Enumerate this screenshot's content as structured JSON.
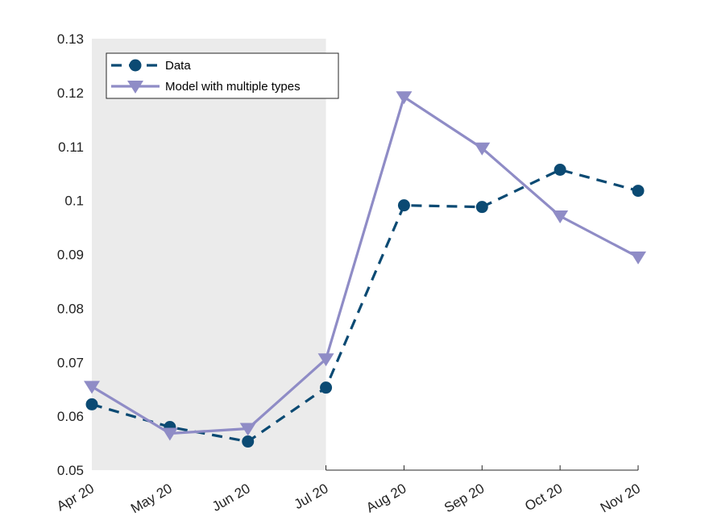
{
  "chart_data": {
    "type": "line",
    "categories": [
      "Apr 20",
      "May 20",
      "Jun 20",
      "Jul 20",
      "Aug 20",
      "Sep 20",
      "Oct 20",
      "Nov 20"
    ],
    "ylim": [
      0.05,
      0.13
    ],
    "yticks": [
      "0.05",
      "0.06",
      "0.07",
      "0.08",
      "0.09",
      "0.1",
      "0.11",
      "0.12",
      "0.13"
    ],
    "shaded_region": {
      "from": "Apr 20",
      "to": "Jul 20",
      "color": "#ebebeb"
    },
    "legend_position": "top-left",
    "grid": false,
    "series": [
      {
        "name": "Data",
        "values": [
          0.0622,
          0.058,
          0.0553,
          0.0653,
          0.0991,
          0.0988,
          0.1057,
          0.1018
        ],
        "color": "#0b4a73",
        "line_style": "dashed",
        "marker": "circle"
      },
      {
        "name": "Model with multiple types",
        "values": [
          0.0655,
          0.0568,
          0.0577,
          0.0706,
          0.1192,
          0.1097,
          0.0971,
          0.0895
        ],
        "color": "#8f8cc6",
        "line_style": "solid",
        "marker": "triangle-down"
      }
    ]
  }
}
